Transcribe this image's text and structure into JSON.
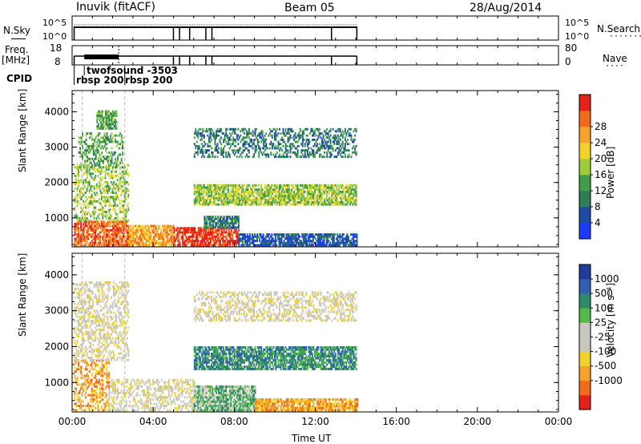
{
  "header": {
    "station": "Inuvik (fitACF)",
    "beam": "Beam 05",
    "date": "28/Aug/2014"
  },
  "top_panels": {
    "nsky_label": "N.Sky",
    "nsky_ticks": [
      "10^5",
      "10^0"
    ],
    "nsearch_label": "N.Search",
    "nsearch_ticks": [
      "10^5",
      "10^0"
    ],
    "freq_label": "Freq.",
    "freq_unit": "[MHz]",
    "freq_ticks": [
      "18",
      "8"
    ],
    "nave_label": "Nave",
    "nave_ticks": [
      "80",
      "0"
    ],
    "cpid_label": "CPID",
    "cpid_entries": [
      {
        "text": "twofsound -3503",
        "start_h": 0.6
      },
      {
        "text": "rbsp 200",
        "start_h": 0.1
      },
      {
        "text": "rbsp 200",
        "start_h": 2.6
      }
    ],
    "data_end_h": 14.05
  },
  "chart_data": [
    {
      "type": "heatmap",
      "name": "power-panel",
      "ylabel": "Slant Range [km]",
      "xlim": [
        0,
        24
      ],
      "ylim": [
        180,
        4600
      ],
      "yticks": [
        "1000",
        "2000",
        "3000",
        "4000"
      ],
      "colorbar": {
        "label": "Power [dB]",
        "ticks": [
          "4",
          "8",
          "12",
          "16",
          "20",
          "24",
          "28"
        ],
        "colors": [
          "#1a3cff",
          "#1f4aa6",
          "#2e7d57",
          "#3f9e4a",
          "#9ccc3a",
          "#f0d22a",
          "#f7a32b",
          "#f26a1c",
          "#e52218"
        ]
      },
      "regions": [
        {
          "t0": 0.1,
          "t1": 2.8,
          "r0": 200,
          "r1": 900,
          "level": 7
        },
        {
          "t0": 0.1,
          "t1": 2.8,
          "r0": 900,
          "r1": 2500,
          "level": 4
        },
        {
          "t0": 0.3,
          "t1": 2.5,
          "r0": 2400,
          "r1": 3400,
          "level": 3
        },
        {
          "t0": 1.2,
          "t1": 2.2,
          "r0": 3500,
          "r1": 4000,
          "level": 3
        },
        {
          "t0": 2.8,
          "t1": 5.0,
          "r0": 200,
          "r1": 750,
          "level": 6
        },
        {
          "t0": 5.0,
          "t1": 8.2,
          "r0": 200,
          "r1": 700,
          "level": 8
        },
        {
          "t0": 6.5,
          "t1": 8.2,
          "r0": 700,
          "r1": 1050,
          "level": 2
        },
        {
          "t0": 8.2,
          "t1": 14.05,
          "r0": 200,
          "r1": 550,
          "level": 1
        },
        {
          "t0": 6.0,
          "t1": 14.0,
          "r0": 1350,
          "r1": 1950,
          "level": 4
        },
        {
          "t0": 6.0,
          "t1": 14.0,
          "r0": 2700,
          "r1": 3500,
          "level": 2
        }
      ]
    },
    {
      "type": "heatmap",
      "name": "velocity-panel",
      "ylabel": "Slant Range [km]",
      "xlabel": "Time UT",
      "xlim": [
        0,
        24
      ],
      "ylim": [
        180,
        4600
      ],
      "yticks": [
        "1000",
        "2000",
        "3000",
        "4000"
      ],
      "xticks": [
        "00:00",
        "04:00",
        "08:00",
        "12:00",
        "16:00",
        "20:00",
        "00:00"
      ],
      "colorbar": {
        "label": "Velocity [m s⁻¹]",
        "ticks": [
          "1000",
          "500",
          "100",
          "25",
          "-25",
          "-100",
          "-500",
          "-1000"
        ],
        "colors": [
          "#e52218",
          "#f26a1c",
          "#f7a32b",
          "#f0d22a",
          "#c8c8c0",
          "#c8c8c0",
          "#55b84a",
          "#2e8a6a",
          "#2f5fb0",
          "#1f3c9e"
        ]
      },
      "regions": [
        {
          "t0": 0.1,
          "t1": 1.8,
          "r0": 200,
          "r1": 1600,
          "level": 2
        },
        {
          "t0": 0.1,
          "t1": 2.8,
          "r0": 1600,
          "r1": 3800,
          "level": 4
        },
        {
          "t0": 1.8,
          "t1": 6.0,
          "r0": 200,
          "r1": 1100,
          "level": 4
        },
        {
          "t0": 6.0,
          "t1": 9.0,
          "r0": 200,
          "r1": 900,
          "level": 6
        },
        {
          "t0": 9.0,
          "t1": 14.05,
          "r0": 200,
          "r1": 550,
          "level": 2
        },
        {
          "t0": 6.0,
          "t1": 14.0,
          "r0": 1350,
          "r1": 2000,
          "level": 7
        },
        {
          "t0": 6.0,
          "t1": 14.0,
          "r0": 2700,
          "r1": 3500,
          "level": 4
        }
      ]
    }
  ]
}
